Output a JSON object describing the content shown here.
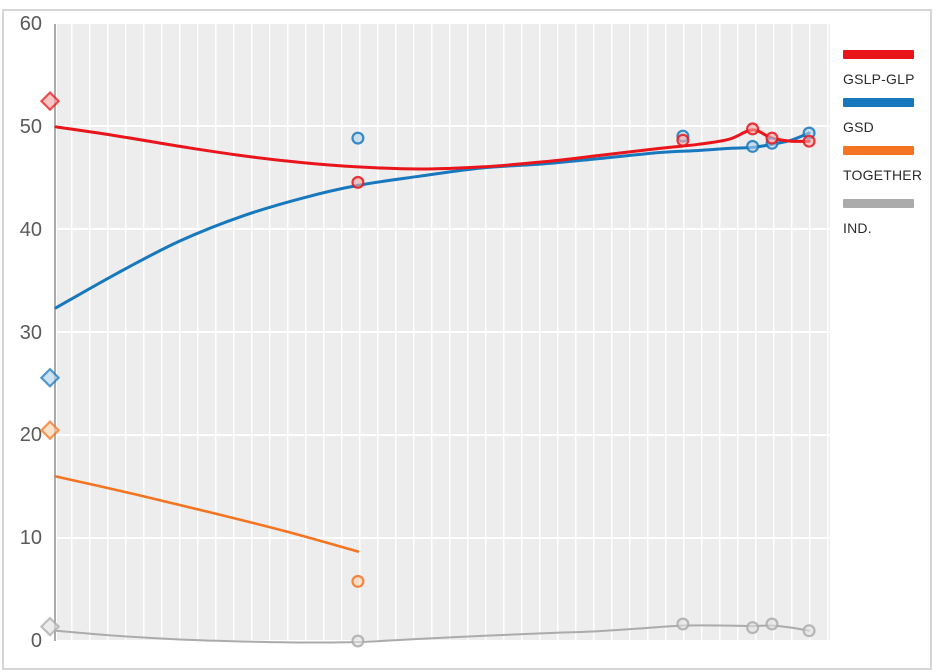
{
  "legend": {
    "items": [
      {
        "label": "GSLP-GLP",
        "color": "#e9151b"
      },
      {
        "label": "GSD",
        "color": "#1878be"
      },
      {
        "label": "TOGETHER",
        "color": "#f47421"
      },
      {
        "label": "IND.",
        "color": "#ababab"
      }
    ]
  },
  "chart_data": {
    "type": "line",
    "title": "",
    "legend_position": "right",
    "y_axis": {
      "range": [
        0,
        60
      ],
      "ticks": [
        0,
        10,
        20,
        30,
        40,
        50,
        60
      ]
    },
    "x_axis": {
      "tick_labels": [],
      "minor_gridlines": true
    },
    "grid": {
      "background": "#ededed",
      "line_color": "#ffffff"
    },
    "series": [
      {
        "name": "GSLP-GLP",
        "color": "#e9151b",
        "marker_fill": "#f3a9a6",
        "line_width": 3,
        "election_result": {
          "x_pct": 0,
          "value": 52.5
        },
        "poll_points": [
          [
            39,
            44.6
          ],
          [
            81,
            48.7
          ],
          [
            90,
            49.8
          ],
          [
            92.5,
            48.9
          ],
          [
            97.3,
            48.6
          ]
        ],
        "trend": [
          [
            0,
            50.0
          ],
          [
            8,
            49.1
          ],
          [
            16,
            48.1
          ],
          [
            24,
            47.2
          ],
          [
            32,
            46.5
          ],
          [
            39,
            46.1
          ],
          [
            47,
            45.9
          ],
          [
            55,
            46.1
          ],
          [
            63,
            46.6
          ],
          [
            70,
            47.2
          ],
          [
            78,
            47.9
          ],
          [
            83,
            48.3
          ],
          [
            87,
            48.8
          ],
          [
            90,
            49.7
          ],
          [
            92.5,
            48.9
          ],
          [
            95,
            48.6
          ],
          [
            97.3,
            48.6
          ]
        ]
      },
      {
        "name": "GSD",
        "color": "#1878be",
        "marker_fill": "#b4d2ea",
        "line_width": 3,
        "election_result": {
          "x_pct": 0,
          "value": 25.6
        },
        "poll_points": [
          [
            39,
            48.9
          ],
          [
            81,
            49.1
          ],
          [
            90,
            48.1
          ],
          [
            92.5,
            48.4
          ],
          [
            97.3,
            49.4
          ]
        ],
        "trend": [
          [
            0,
            32.4
          ],
          [
            8,
            35.8
          ],
          [
            16,
            38.9
          ],
          [
            24,
            41.3
          ],
          [
            32,
            43.1
          ],
          [
            39,
            44.3
          ],
          [
            47,
            45.2
          ],
          [
            55,
            46.0
          ],
          [
            63,
            46.4
          ],
          [
            70,
            46.9
          ],
          [
            78,
            47.5
          ],
          [
            83,
            47.7
          ],
          [
            87,
            47.9
          ],
          [
            90,
            48.0
          ],
          [
            92.5,
            48.3
          ],
          [
            95,
            48.7
          ],
          [
            97.3,
            49.4
          ]
        ]
      },
      {
        "name": "TOGETHER",
        "color": "#f47421",
        "marker_fill": "#fad2ae",
        "line_width": 2.6,
        "election_result": {
          "x_pct": 0,
          "value": 20.5
        },
        "poll_points": [
          [
            39,
            5.8
          ]
        ],
        "trend": [
          [
            0,
            16.0
          ],
          [
            10,
            14.3
          ],
          [
            20,
            12.5
          ],
          [
            30,
            10.6
          ],
          [
            39,
            8.7
          ]
        ]
      },
      {
        "name": "IND.",
        "color": "#ababab",
        "marker_fill": "#e2e2e2",
        "line_width": 2,
        "election_result": {
          "x_pct": 0,
          "value": 1.4
        },
        "poll_points": [
          [
            39,
            0
          ],
          [
            81,
            1.65
          ],
          [
            90,
            1.3
          ],
          [
            92.5,
            1.65
          ],
          [
            97.3,
            1.0
          ]
        ],
        "trend": [
          [
            0,
            1.0
          ],
          [
            8,
            0.5
          ],
          [
            16,
            0.15
          ],
          [
            24,
            -0.05
          ],
          [
            32,
            -0.15
          ],
          [
            39,
            -0.1
          ],
          [
            47,
            0.2
          ],
          [
            55,
            0.5
          ],
          [
            63,
            0.75
          ],
          [
            70,
            0.95
          ],
          [
            75,
            1.2
          ],
          [
            81,
            1.5
          ],
          [
            87,
            1.5
          ],
          [
            90,
            1.45
          ],
          [
            92.5,
            1.5
          ],
          [
            95,
            1.3
          ],
          [
            97.3,
            1.0
          ]
        ]
      }
    ]
  }
}
